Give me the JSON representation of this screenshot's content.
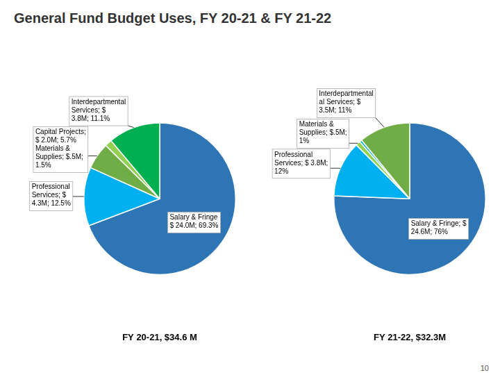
{
  "chart_data": [
    {
      "type": "pie",
      "title": "General Fund Budget Uses, FY 20-21 & FY 21-22",
      "subtitle": "FY 20-21, $34.6 M",
      "values": [
        69.3,
        12.5,
        5.7,
        1.5,
        11.1
      ],
      "colors": [
        "#2E75B6",
        "#00B0F0",
        "#70AD47",
        "#92D050",
        "#00B050"
      ],
      "data_labels": true,
      "value_labels": [
        "Salary & Fringe\n$ 24.0M; 69.3%",
        "Professional\nServices; $\n4.3M; 12.5%",
        "Capital Projects;\n$ 2.0M; 5.7%\nMaterials &\nSupplies; $.5M;\n1.5%",
        null,
        "Interdepartmental\nServices; $\n3.8M; 11.1%"
      ]
    },
    {
      "type": "pie",
      "subtitle": "FY 21-22, $32.3M",
      "values": [
        76.0,
        12.0,
        1.0,
        0.5,
        11.0
      ],
      "colors": [
        "#2E75B6",
        "#00B0F0",
        "#92D050",
        "#00B0C8",
        "#70AD47"
      ],
      "data_labels": true,
      "value_labels": [
        "Salary & Fringe; $\n24.6M; 76%",
        "Professional\nServices; $ 3.8M;\n12%",
        "Materials &\nSupplies; $.5M;\n1%",
        null,
        "Interdepartmental\nal Services; $\n3.5M; 11%"
      ],
      "annotations": [
        "10"
      ]
    }
  ]
}
